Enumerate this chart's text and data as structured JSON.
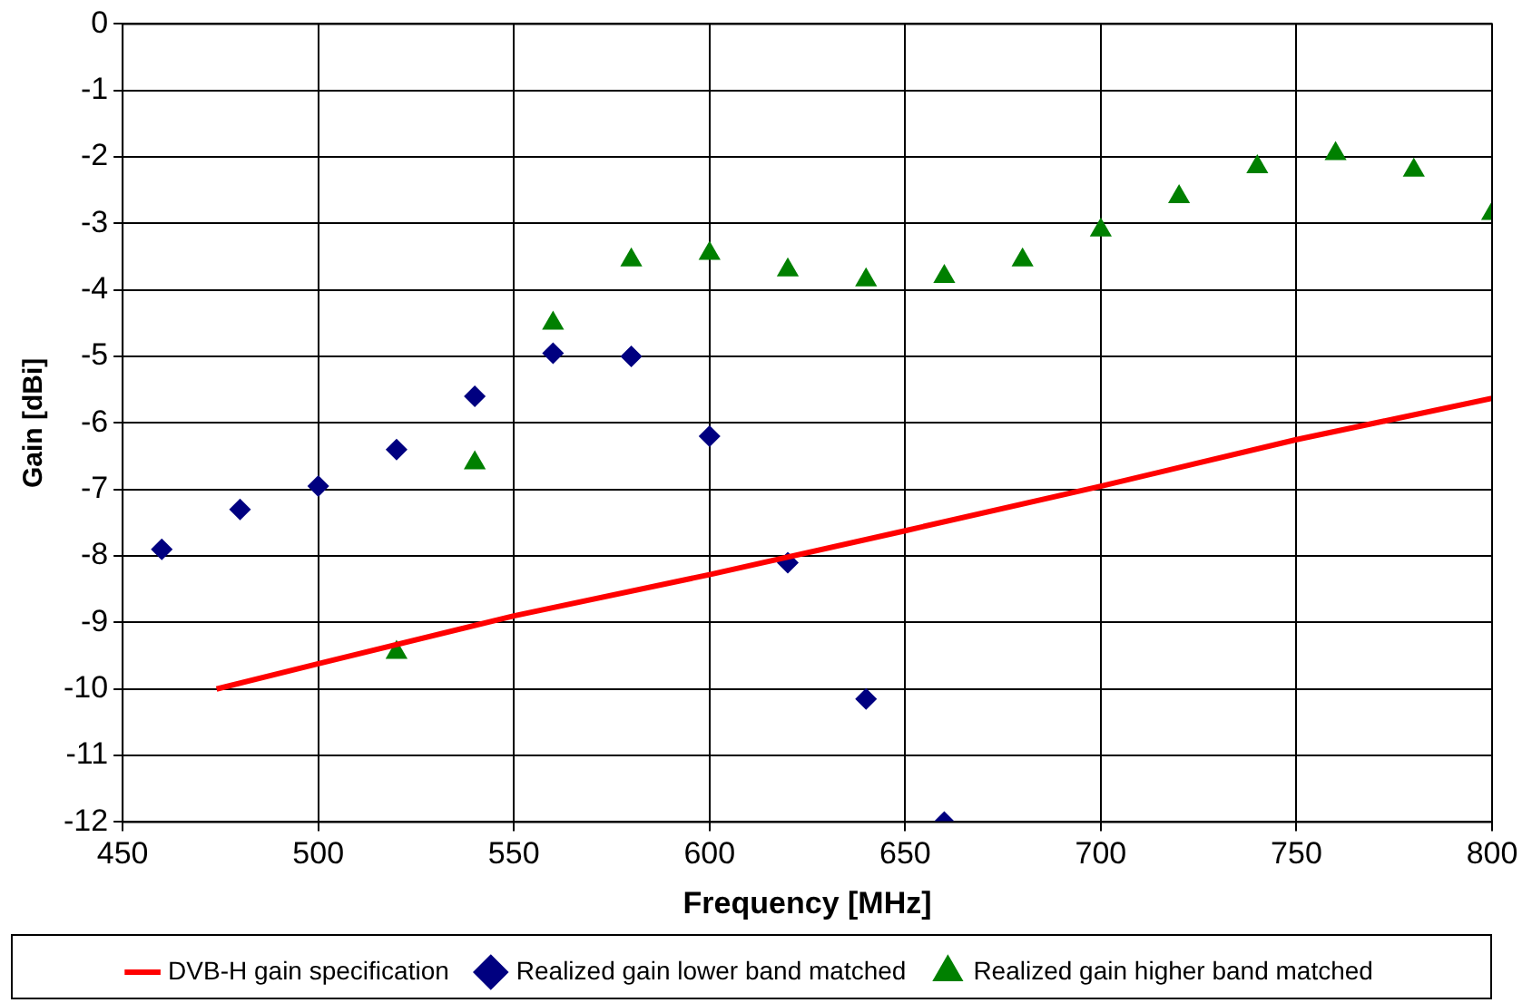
{
  "chart_data": {
    "type": "scatter",
    "xlabel": "Frequency [MHz]",
    "ylabel": "Gain [dBi]",
    "xlim": [
      450,
      800
    ],
    "xticks": [
      450,
      500,
      550,
      600,
      650,
      700,
      750,
      800
    ],
    "ylim": [
      -12,
      0
    ],
    "yticks": [
      -12,
      -11,
      -10,
      -9,
      -8,
      -7,
      -6,
      -5,
      -4,
      -3,
      -2,
      -1,
      0
    ],
    "grid": true,
    "legend": "bottom",
    "series": [
      {
        "name": "DVB-H gain specification",
        "type": "line",
        "color": "#ff0000",
        "marker": "none",
        "line_style": "solid",
        "x": [
          474,
          500,
          550,
          600,
          650,
          700,
          750,
          800
        ],
        "values": [
          -10,
          -9.62,
          -8.9,
          -8.28,
          -7.62,
          -6.95,
          -6.25,
          -5.63
        ]
      },
      {
        "name": "Realized gain lower band matched",
        "type": "scatter",
        "color": "#000080",
        "marker": "diamond",
        "x": [
          460,
          480,
          500,
          520,
          540,
          560,
          580,
          600,
          620,
          640,
          660
        ],
        "values": [
          -7.9,
          -7.3,
          -6.95,
          -6.4,
          -5.6,
          -4.95,
          -5.0,
          -6.2,
          -8.1,
          -10.15,
          -12.0
        ]
      },
      {
        "name": "Realized gain higher band matched",
        "type": "scatter",
        "color": "#008000",
        "marker": "triangle",
        "x": [
          520,
          540,
          560,
          580,
          600,
          620,
          640,
          660,
          680,
          700,
          720,
          740,
          760,
          780,
          800
        ],
        "values": [
          -9.45,
          -6.6,
          -4.5,
          -3.55,
          -3.45,
          -3.7,
          -3.85,
          -3.8,
          -3.55,
          -3.1,
          -2.6,
          -2.15,
          -1.95,
          -2.2,
          -2.85
        ]
      }
    ]
  }
}
